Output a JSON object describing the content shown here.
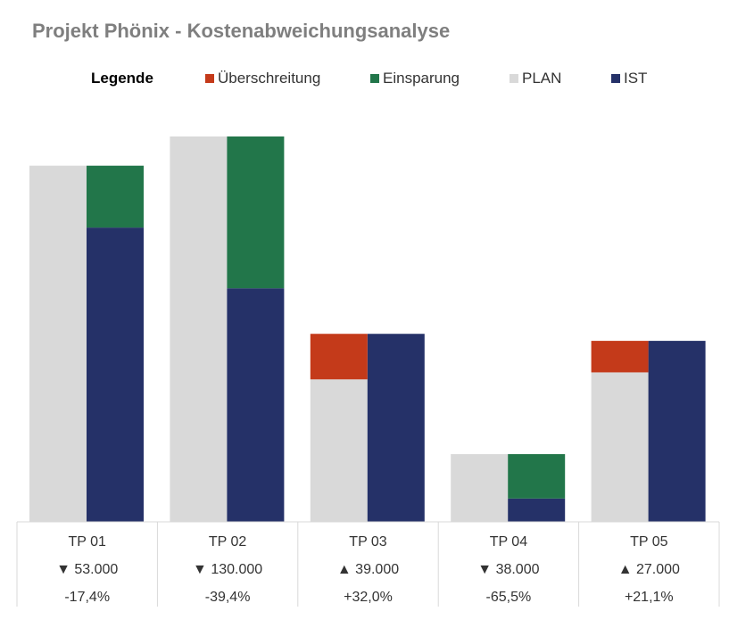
{
  "title": "Projekt Phönix - Kostenabweichungsanalyse",
  "legend": {
    "title": "Legende",
    "items": [
      {
        "label": "Überschreitung",
        "color": "#c43a1a"
      },
      {
        "label": "Einsparung",
        "color": "#22764a"
      },
      {
        "label": "PLAN",
        "color": "#d9d9d9"
      },
      {
        "label": "IST",
        "color": "#253168"
      }
    ]
  },
  "chart_data": {
    "type": "bar",
    "categories": [
      "TP 01",
      "TP 02",
      "TP 03",
      "TP 04",
      "TP 05"
    ],
    "series": [
      {
        "name": "PLAN",
        "values": [
          305000,
          330000,
          122000,
          58000,
          128000
        ]
      },
      {
        "name": "IST",
        "values": [
          252000,
          200000,
          161000,
          20000,
          155000
        ]
      }
    ],
    "deviation_labels": [
      "▼ 53.000",
      "▼ 130.000",
      "▲ 39.000",
      "▼ 38.000",
      "▲ 27.000"
    ],
    "percent_labels": [
      "-17,4%",
      "-39,4%",
      "+32,0%",
      "-65,5%",
      "+21,1%"
    ],
    "colors": {
      "overrun": "#c43a1a",
      "savings": "#22764a",
      "plan": "#d9d9d9",
      "actual": "#253168",
      "grid": "#d9d9d9"
    },
    "ylim": [
      0,
      330000
    ]
  }
}
